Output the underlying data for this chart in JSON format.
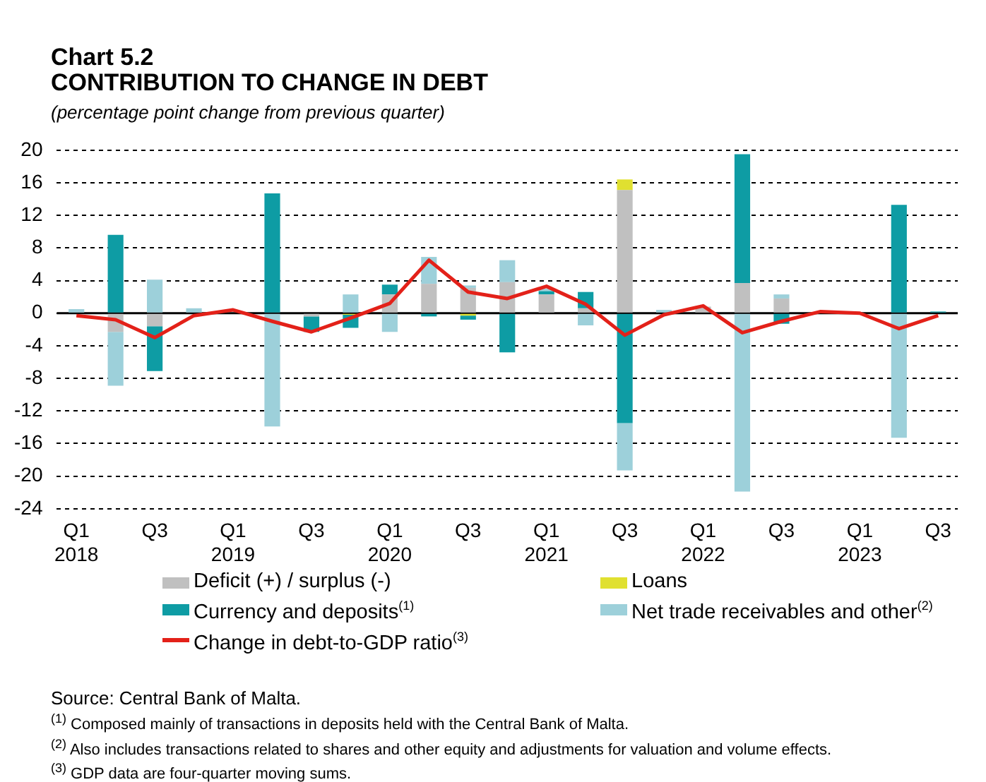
{
  "chart_data": {
    "type": "bar",
    "stacked": true,
    "title": "Chart 5.2",
    "subtitle": "CONTRIBUTION TO CHANGE IN DEBT",
    "ylabel": "(percentage point change from previous quarter)",
    "categories": [
      "Q1 2018",
      null,
      "Q3",
      null,
      "Q1 2019",
      null,
      "Q3",
      null,
      "Q1 2020",
      null,
      "Q3",
      null,
      "Q1 2021",
      null,
      "Q3",
      null,
      "Q1 2022",
      null,
      "Q3",
      null,
      "Q1 2023",
      null,
      "Q3"
    ],
    "series": [
      {
        "name": "Deficit (+) / surplus (-)",
        "color": "#c0c0c0",
        "values": [
          0,
          -2.3,
          -1.6,
          0,
          0,
          0,
          -0.4,
          0,
          2.3,
          3.6,
          3.1,
          3.8,
          2.3,
          0.6,
          15.1,
          0,
          0.8,
          3.7,
          1.8,
          0,
          0,
          0,
          0
        ]
      },
      {
        "name": "Loans",
        "color": "#e0e030",
        "values": [
          0,
          0,
          0,
          0,
          0,
          0,
          0,
          -0.2,
          0,
          0,
          -0.3,
          0,
          0,
          0,
          1.3,
          0,
          0,
          0,
          0,
          0,
          0,
          0,
          0
        ]
      },
      {
        "name": "Currency and deposits$^{(1)}$",
        "color": "#0e9ca4",
        "values": [
          null,
          9.6,
          -5.5,
          0,
          0,
          14.7,
          -1.9,
          -1.6,
          1.2,
          -0.4,
          -0.5,
          -4.8,
          0.4,
          2,
          -13.5,
          0,
          0,
          15.8,
          -1.3,
          0,
          0,
          13.3,
          0.2
        ]
      },
      {
        "name": "Net trade receivables and other$^{(2)}$",
        "color": "#9dd0da",
        "values": [
          0.5,
          -6.6,
          4.1,
          0.6,
          0,
          -13.9,
          0,
          2.3,
          -2.3,
          3.3,
          0.3,
          2.7,
          0.3,
          -1.5,
          -5.8,
          0.4,
          0,
          -21.9,
          0.5,
          0,
          0,
          -15.3,
          0
        ]
      },
      {
        "name": "Change in debt-to-GDP ratio$^{(3)}$",
        "type": "line",
        "color": "#e32119",
        "values": [
          -0.3,
          -0.8,
          -3,
          -0.3,
          0.4,
          -1,
          -2.3,
          -0.6,
          1.2,
          6.5,
          2.6,
          1.8,
          3.3,
          1.1,
          -2.7,
          -0.2,
          0.9,
          -2.4,
          -1,
          0.2,
          0,
          -1.9,
          -0.3
        ]
      }
    ],
    "ylim": [
      -24,
      20
    ],
    "yticks": [
      -24,
      -20,
      -16,
      -12,
      -8,
      -4,
      0,
      4,
      8,
      12,
      16,
      20
    ],
    "grid": "y",
    "legend": "bottom",
    "marker": "none",
    "line_style": "solid",
    "annotations": [
      "Source: Central Bank of Malta.",
      "$^{(1)}$ Composed mainly of transactions in deposits held with the Central Bank of Malta.",
      "$^{(2)}$ Also includes transactions related to shares and other equity and adjustments for valuation and volume effects.",
      "$^{(3)}$ GDP data are four-quarter moving sums."
    ]
  }
}
